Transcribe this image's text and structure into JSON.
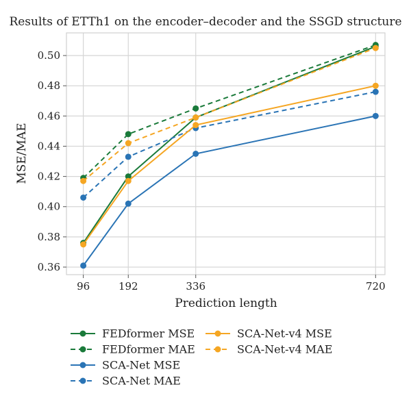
{
  "chart_data": {
    "type": "line",
    "title": "Results of ETTh1 on the encoder–decoder and the SSGD structure",
    "xlabel": "Prediction length",
    "ylabel": "MSE/MAE",
    "x": [
      96,
      192,
      336,
      720
    ],
    "x_tick_labels": [
      "96",
      "192",
      "336",
      "720"
    ],
    "xlim": [
      60,
      740
    ],
    "ylim": [
      0.355,
      0.515
    ],
    "y_ticks": [
      0.36,
      0.38,
      0.4,
      0.42,
      0.44,
      0.46,
      0.48,
      0.5
    ],
    "y_tick_labels": [
      "0.36",
      "0.38",
      "0.40",
      "0.42",
      "0.44",
      "0.46",
      "0.48",
      "0.50"
    ],
    "grid": true,
    "legend_position": "bottom",
    "series": [
      {
        "name": "FEDformer MSE",
        "color": "#1a7a3a",
        "dash": "solid",
        "values": [
          0.376,
          0.42,
          0.459,
          0.506
        ]
      },
      {
        "name": "FEDformer MAE",
        "color": "#1a7a3a",
        "dash": "dashed",
        "values": [
          0.419,
          0.448,
          0.465,
          0.507
        ]
      },
      {
        "name": "SCA-Net MSE",
        "color": "#2a74b5",
        "dash": "solid",
        "values": [
          0.361,
          0.402,
          0.435,
          0.46
        ]
      },
      {
        "name": "SCA-Net MAE",
        "color": "#2a74b5",
        "dash": "dashed",
        "values": [
          0.406,
          0.433,
          0.452,
          0.476
        ]
      },
      {
        "name": "SCA-Net-v4 MSE",
        "color": "#f5a623",
        "dash": "solid",
        "values": [
          0.375,
          0.417,
          0.454,
          0.48
        ]
      },
      {
        "name": "SCA-Net-v4 MAE",
        "color": "#f5a623",
        "dash": "dashed",
        "values": [
          0.417,
          0.442,
          0.459,
          0.505
        ]
      }
    ]
  }
}
